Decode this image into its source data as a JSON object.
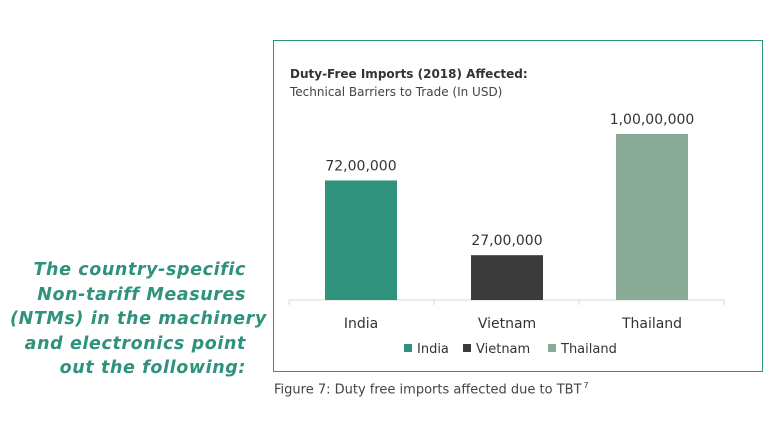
{
  "side_text": {
    "lines": [
      "The country-specific",
      "Non-tariff Measures",
      "(NTMs) in the machinery",
      "and electronics point",
      "out the following:"
    ]
  },
  "chart_data": {
    "type": "bar",
    "title": "Duty-Free Imports (2018) Affected:",
    "subtitle": "Technical Barriers to Trade (In USD)",
    "categories": [
      "India",
      "Vietnam",
      "Thailand"
    ],
    "values": [
      7200000,
      2700000,
      10000000
    ],
    "data_labels": [
      "72,00,000",
      "27,00,000",
      "1,00,00,000"
    ],
    "colors": [
      "#2e927c",
      "#3b3b3b",
      "#88aa96"
    ],
    "legend": {
      "position": "bottom",
      "entries": [
        "India",
        "Vietnam",
        "Thailand"
      ]
    },
    "ylim": [
      0,
      10000000
    ],
    "grid": false,
    "xlabel": "",
    "ylabel": ""
  },
  "caption": {
    "text": "Figure 7: Duty free imports affected due to TBT",
    "superscript": "7"
  }
}
